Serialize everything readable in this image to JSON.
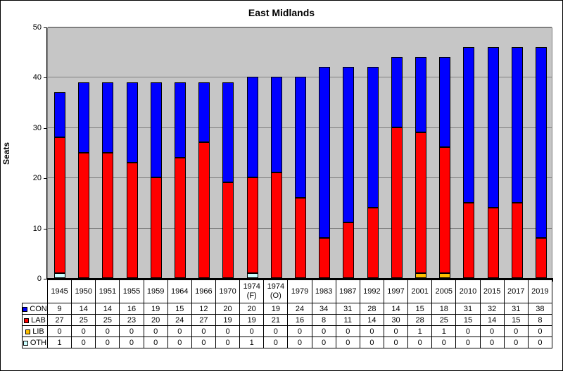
{
  "chart_data": {
    "type": "bar",
    "stacked": true,
    "title": "East Midlands",
    "ylabel": "Seats",
    "ylim": [
      0,
      50
    ],
    "yticks": [
      0,
      10,
      20,
      30,
      40,
      50
    ],
    "grid": true,
    "plot_background": "#C6C6C6",
    "gridline_color": "#808080",
    "legend_position": "table-left",
    "categories": [
      "1945",
      "1950",
      "1951",
      "1955",
      "1959",
      "1964",
      "1966",
      "1970",
      "1974 (F)",
      "1974 (O)",
      "1979",
      "1983",
      "1987",
      "1992",
      "1997",
      "2001",
      "2005",
      "2010",
      "2015",
      "2017",
      "2019"
    ],
    "series": [
      {
        "name": "CON",
        "color": "#0000FF",
        "values": [
          9,
          14,
          14,
          16,
          19,
          15,
          12,
          20,
          20,
          19,
          24,
          34,
          31,
          28,
          14,
          15,
          18,
          31,
          32,
          31,
          38
        ]
      },
      {
        "name": "LAB",
        "color": "#FF0000",
        "values": [
          27,
          25,
          25,
          23,
          20,
          24,
          27,
          19,
          19,
          21,
          16,
          8,
          11,
          14,
          30,
          28,
          25,
          15,
          14,
          15,
          8
        ]
      },
      {
        "name": "LIB",
        "color": "#FFC000",
        "values": [
          0,
          0,
          0,
          0,
          0,
          0,
          0,
          0,
          0,
          0,
          0,
          0,
          0,
          0,
          0,
          1,
          1,
          0,
          0,
          0,
          0
        ]
      },
      {
        "name": "OTH",
        "color": "#CCFFFF",
        "values": [
          1,
          0,
          0,
          0,
          0,
          0,
          0,
          0,
          1,
          0,
          0,
          0,
          0,
          0,
          0,
          0,
          0,
          0,
          0,
          0,
          0
        ]
      }
    ],
    "stack_order_bottom_to_top": [
      "OTH",
      "LIB",
      "LAB",
      "CON"
    ]
  }
}
